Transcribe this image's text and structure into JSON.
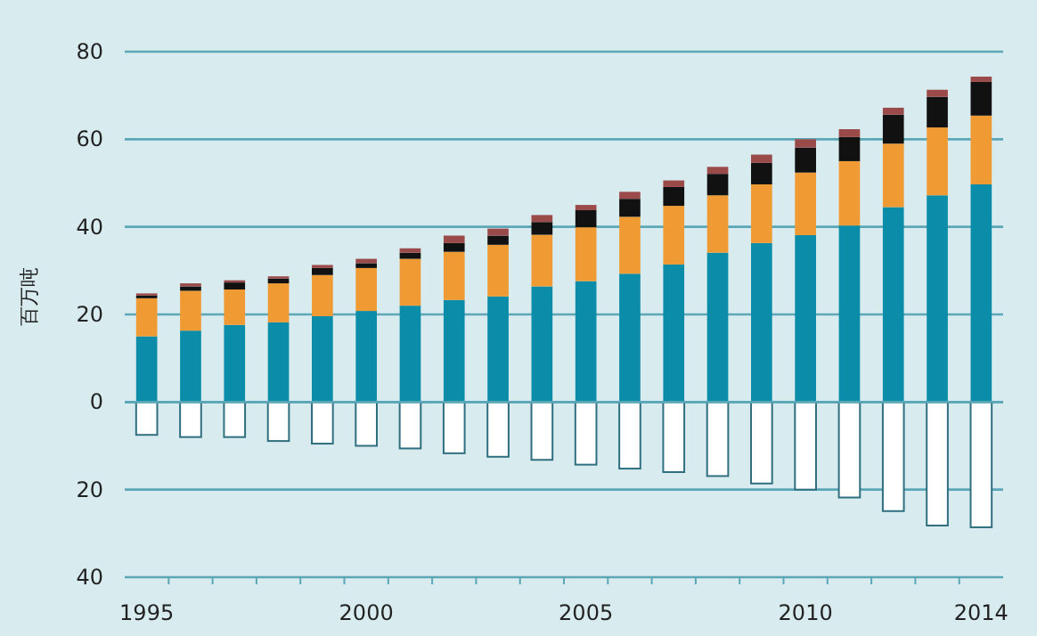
{
  "chart_data": {
    "type": "bar",
    "stacked": true,
    "ylabel": "百万吨",
    "categories": [
      "1995",
      null,
      null,
      null,
      null,
      "2000",
      null,
      null,
      null,
      null,
      "2005",
      null,
      null,
      null,
      null,
      "2010",
      null,
      null,
      null,
      "2014"
    ],
    "series": [
      {
        "color": "#0b8ca8",
        "values": [
          15.0,
          16.3,
          17.6,
          18.2,
          19.6,
          20.8,
          22.0,
          23.3,
          24.1,
          26.4,
          27.6,
          29.3,
          31.4,
          34.1,
          36.3,
          38.1,
          40.3,
          44.5,
          47.2,
          49.7
        ]
      },
      {
        "color": "#ef9a33",
        "values": [
          8.7,
          9.1,
          8.1,
          8.9,
          9.4,
          9.8,
          10.7,
          11.0,
          11.8,
          11.8,
          12.3,
          13.0,
          13.4,
          13.1,
          13.4,
          14.3,
          14.7,
          14.5,
          15.5,
          15.7
        ]
      },
      {
        "color": "#111111",
        "values": [
          0.6,
          1.0,
          1.6,
          1.1,
          1.6,
          1.1,
          1.4,
          2.0,
          2.1,
          2.9,
          3.9,
          4.1,
          4.3,
          4.9,
          4.9,
          5.7,
          5.5,
          6.6,
          7.0,
          7.7
        ]
      },
      {
        "color": "#9b4a4a",
        "values": [
          0.5,
          0.7,
          0.5,
          0.5,
          0.7,
          1.0,
          1.0,
          1.7,
          1.6,
          1.6,
          1.2,
          1.6,
          1.5,
          1.6,
          1.9,
          1.9,
          1.8,
          1.6,
          1.6,
          1.2
        ]
      },
      {
        "color": "#ffffff",
        "values": [
          -7.5,
          -8.0,
          -8.0,
          -8.9,
          -9.5,
          -10.0,
          -10.6,
          -11.7,
          -12.5,
          -13.2,
          -14.3,
          -15.2,
          -16.0,
          -16.9,
          -18.6,
          -20.0,
          -21.8,
          -24.9,
          -28.2,
          -28.6
        ]
      }
    ],
    "ylim": [
      -40,
      80
    ],
    "yticks": [
      {
        "value": -40,
        "label": "40"
      },
      {
        "value": -20,
        "label": "20"
      },
      0,
      20,
      40,
      60,
      80
    ],
    "grid": "y"
  }
}
